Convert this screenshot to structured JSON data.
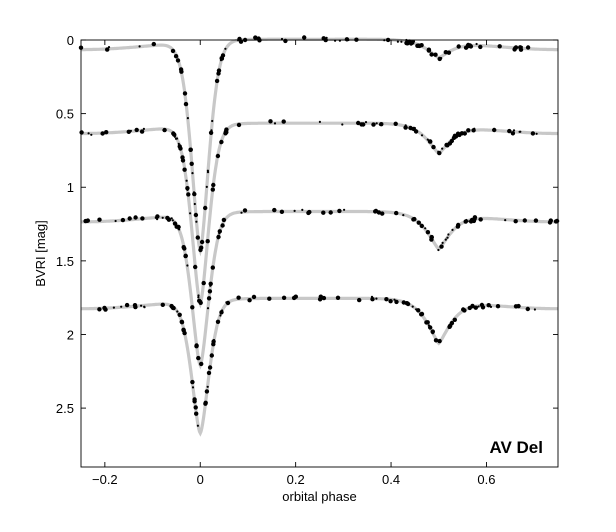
{
  "chart_data": {
    "type": "scatter",
    "title": "",
    "xlabel": "orbital phase",
    "ylabel": "BVRI  [mag]",
    "annotation": "AV Del",
    "xlim": [
      -0.25,
      0.75
    ],
    "ylim": [
      0,
      2.9
    ],
    "y_inverted": true,
    "grid": false,
    "x_ticks": [
      -0.2,
      0,
      0.2,
      0.4,
      0.6
    ],
    "x_tick_labels": [
      "−0.2",
      "0",
      "0.2",
      "0.4",
      "0.6"
    ],
    "y_ticks": [
      0,
      0.5,
      1,
      1.5,
      2,
      2.5
    ],
    "y_tick_labels": [
      "0",
      "0.5",
      "1",
      "1.5",
      "2",
      "2.5"
    ],
    "colors": {
      "model_curve": "#c8c8c8",
      "points": "#000000"
    },
    "series": [
      {
        "offset": 0.0,
        "primary_depth": 1.42,
        "secondary_depth": 0.11
      },
      {
        "offset": 0.57,
        "primary_depth": 1.21,
        "secondary_depth": 0.19
      },
      {
        "offset": 1.17,
        "primary_depth": 1.03,
        "secondary_depth": 0.24
      },
      {
        "offset": 1.76,
        "primary_depth": 0.9,
        "secondary_depth": 0.29
      }
    ]
  }
}
